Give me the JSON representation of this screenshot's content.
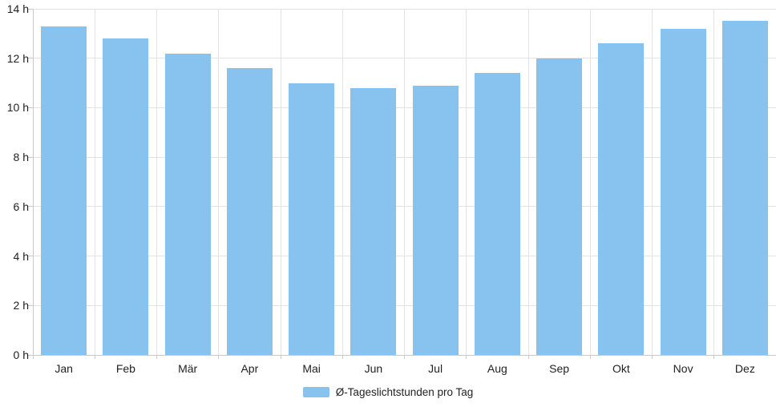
{
  "chart_data": {
    "type": "bar",
    "title": "",
    "xlabel": "",
    "ylabel": "",
    "unit": "h",
    "categories": [
      "Jan",
      "Feb",
      "Mär",
      "Apr",
      "Mai",
      "Jun",
      "Jul",
      "Aug",
      "Sep",
      "Okt",
      "Nov",
      "Dez"
    ],
    "values": [
      13.3,
      12.8,
      12.2,
      11.6,
      11.0,
      10.8,
      10.9,
      11.4,
      12.0,
      12.6,
      13.2,
      13.5
    ],
    "series": [
      {
        "name": "Ø-Tageslichtstunden pro Tag",
        "values": [
          13.3,
          12.8,
          12.2,
          11.6,
          11.0,
          10.8,
          10.9,
          11.4,
          12.0,
          12.6,
          13.2,
          13.5
        ]
      }
    ],
    "ylim": [
      0,
      14
    ],
    "ytick_step": 2,
    "ytick_labels": [
      "0 h",
      "2 h",
      "4 h",
      "6 h",
      "8 h",
      "10 h",
      "12 h",
      "14 h"
    ],
    "grid": "on",
    "legend": {
      "label": "Ø-Tageslichtstunden pro Tag",
      "position": "bottom-center"
    },
    "colors": {
      "bar": "#88C2EF",
      "grid": "#e3e3e3",
      "axis": "#c9c9c9",
      "text": "#222222",
      "background": "#ffffff"
    }
  }
}
